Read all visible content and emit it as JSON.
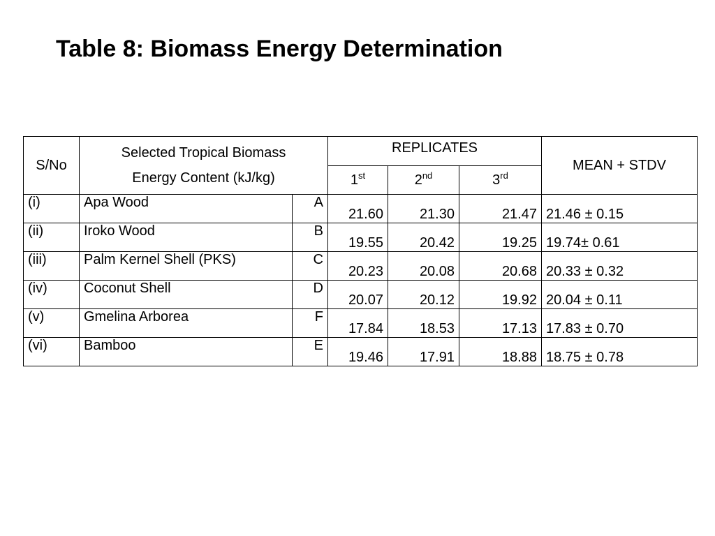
{
  "title": "Table 8: Biomass Energy Determination",
  "table": {
    "headers": {
      "sno": "S/No",
      "biomass_line1": "Selected Tropical Biomass",
      "biomass_line2": "Energy  Content (kJ/kg)",
      "replicates": "REPLICATES",
      "rep1_num": "1",
      "rep1_sup": "st",
      "rep2_num": "2",
      "rep2_sup": "nd",
      "rep3_num": "3",
      "rep3_sup": "rd",
      "mean": "MEAN + STDV"
    },
    "rows": [
      {
        "sno": "(i)",
        "name": "Apa Wood",
        "code": "A",
        "rep1": "21.60",
        "rep2": "21.30",
        "rep3": "21.47",
        "mean": "21.46 ± 0.15"
      },
      {
        "sno": "(ii)",
        "name": "Iroko Wood",
        "code": "B",
        "rep1": "19.55",
        "rep2": "20.42",
        "rep3": "19.25",
        "mean": "19.74±  0.61"
      },
      {
        "sno": "(iii)",
        "name": "Palm Kernel Shell (PKS)",
        "code": "C",
        "rep1": "20.23",
        "rep2": "20.08",
        "rep3": "20.68",
        "mean": "20.33 ±  0.32"
      },
      {
        "sno": "(iv)",
        "name": "Coconut Shell",
        "code": "D",
        "rep1": "20.07",
        "rep2": "20.12",
        "rep3": "19.92",
        "mean": "20.04 ±  0.11"
      },
      {
        "sno": "(v)",
        "name": "Gmelina Arborea",
        "code": "F",
        "rep1": "17.84",
        "rep2": "18.53",
        "rep3": "17.13",
        "mean": "17.83 ±  0.70"
      },
      {
        "sno": "(vi)",
        "name": "Bamboo",
        "code": "E",
        "rep1": "19.46",
        "rep2": "17.91",
        "rep3": "18.88",
        "mean": "18.75 ±  0.78"
      }
    ]
  }
}
